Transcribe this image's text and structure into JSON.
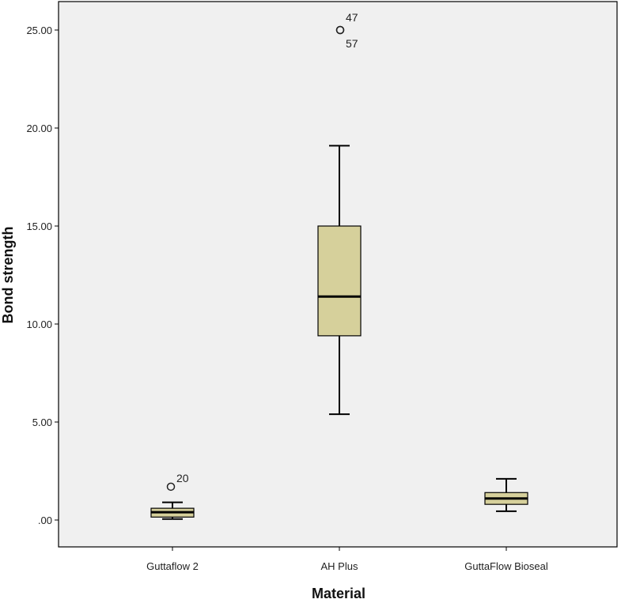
{
  "chart_data": {
    "type": "boxplot",
    "xlabel": "Material",
    "ylabel": "Bond strength",
    "ylim": [
      -1.2,
      26.5
    ],
    "yticks": [
      0,
      5,
      10,
      15,
      20,
      25
    ],
    "ytick_labels": [
      ".00",
      "5.00",
      "10.00",
      "15.00",
      "20.00",
      "25.00"
    ],
    "colors": {
      "box_fill": "#d6d09b",
      "plot_bg": "#f0f0f0",
      "stroke": "#000000"
    },
    "categories": [
      "Guttaflow 2",
      "AH Plus",
      "GuttaFlow Bioseal"
    ],
    "boxes": [
      {
        "category": "Guttaflow 2",
        "min": 0.05,
        "q1": 0.15,
        "median": 0.4,
        "q3": 0.6,
        "max": 0.9,
        "outliers": [
          {
            "value": 1.7,
            "label": "20"
          }
        ]
      },
      {
        "category": "AH Plus",
        "min": 5.4,
        "q1": 9.4,
        "median": 11.4,
        "q3": 15.0,
        "max": 19.1,
        "outliers": [
          {
            "value": 25.0,
            "label": "47"
          },
          {
            "value": 25.0,
            "label": "57"
          }
        ]
      },
      {
        "category": "GuttaFlow Bioseal",
        "min": 0.45,
        "q1": 0.8,
        "median": 1.1,
        "q3": 1.4,
        "max": 2.1,
        "outliers": []
      }
    ]
  }
}
